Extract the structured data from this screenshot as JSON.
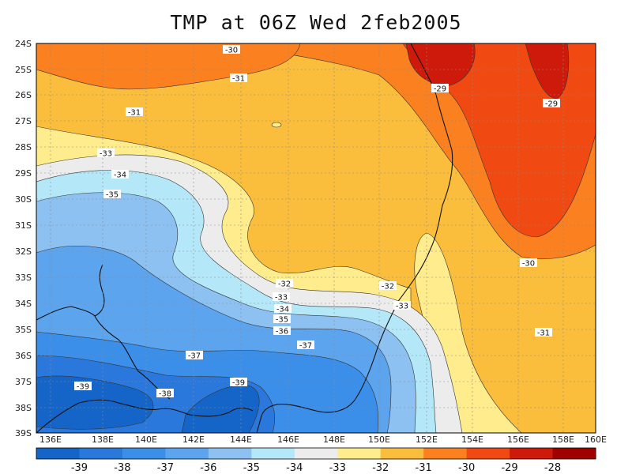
{
  "title": "TMP at 06Z Wed 2feb2005",
  "map": {
    "lon_ticks": [
      "136E",
      "138E",
      "140E",
      "142E",
      "144E",
      "146E",
      "148E",
      "150E",
      "152E",
      "154E",
      "156E",
      "158E",
      "160E"
    ],
    "lat_ticks": [
      "24S",
      "25S",
      "26S",
      "27S",
      "28S",
      "29S",
      "30S",
      "31S",
      "32S",
      "33S",
      "34S",
      "35S",
      "36S",
      "37S",
      "38S",
      "39S"
    ],
    "contour_labels": [
      {
        "text": "-30"
      },
      {
        "text": "-31"
      },
      {
        "text": "-31"
      },
      {
        "text": "-29"
      },
      {
        "text": "-29"
      },
      {
        "text": "-33"
      },
      {
        "text": "-34"
      },
      {
        "text": "-35"
      },
      {
        "text": "-32"
      },
      {
        "text": "-33"
      },
      {
        "text": "-34"
      },
      {
        "text": "-35"
      },
      {
        "text": "-36"
      },
      {
        "text": "-32"
      },
      {
        "text": "-33"
      },
      {
        "text": "-30"
      },
      {
        "text": "-31"
      },
      {
        "text": "-37"
      },
      {
        "text": "-37"
      },
      {
        "text": "-39"
      },
      {
        "text": "-38"
      },
      {
        "text": "-39"
      }
    ]
  },
  "colorbar": {
    "labels": [
      "-39",
      "-38",
      "-37",
      "-36",
      "-35",
      "-34",
      "-33",
      "-32",
      "-31",
      "-30",
      "-29",
      "-28"
    ],
    "colors": [
      "#1565c8",
      "#2a78dc",
      "#3b8fe8",
      "#5ca4ee",
      "#8cc1f2",
      "#b4e8f8",
      "#ececec",
      "#ffec8c",
      "#fbbe3c",
      "#fa8020",
      "#f04a12",
      "#ce1a0a",
      "#a00000"
    ]
  }
}
